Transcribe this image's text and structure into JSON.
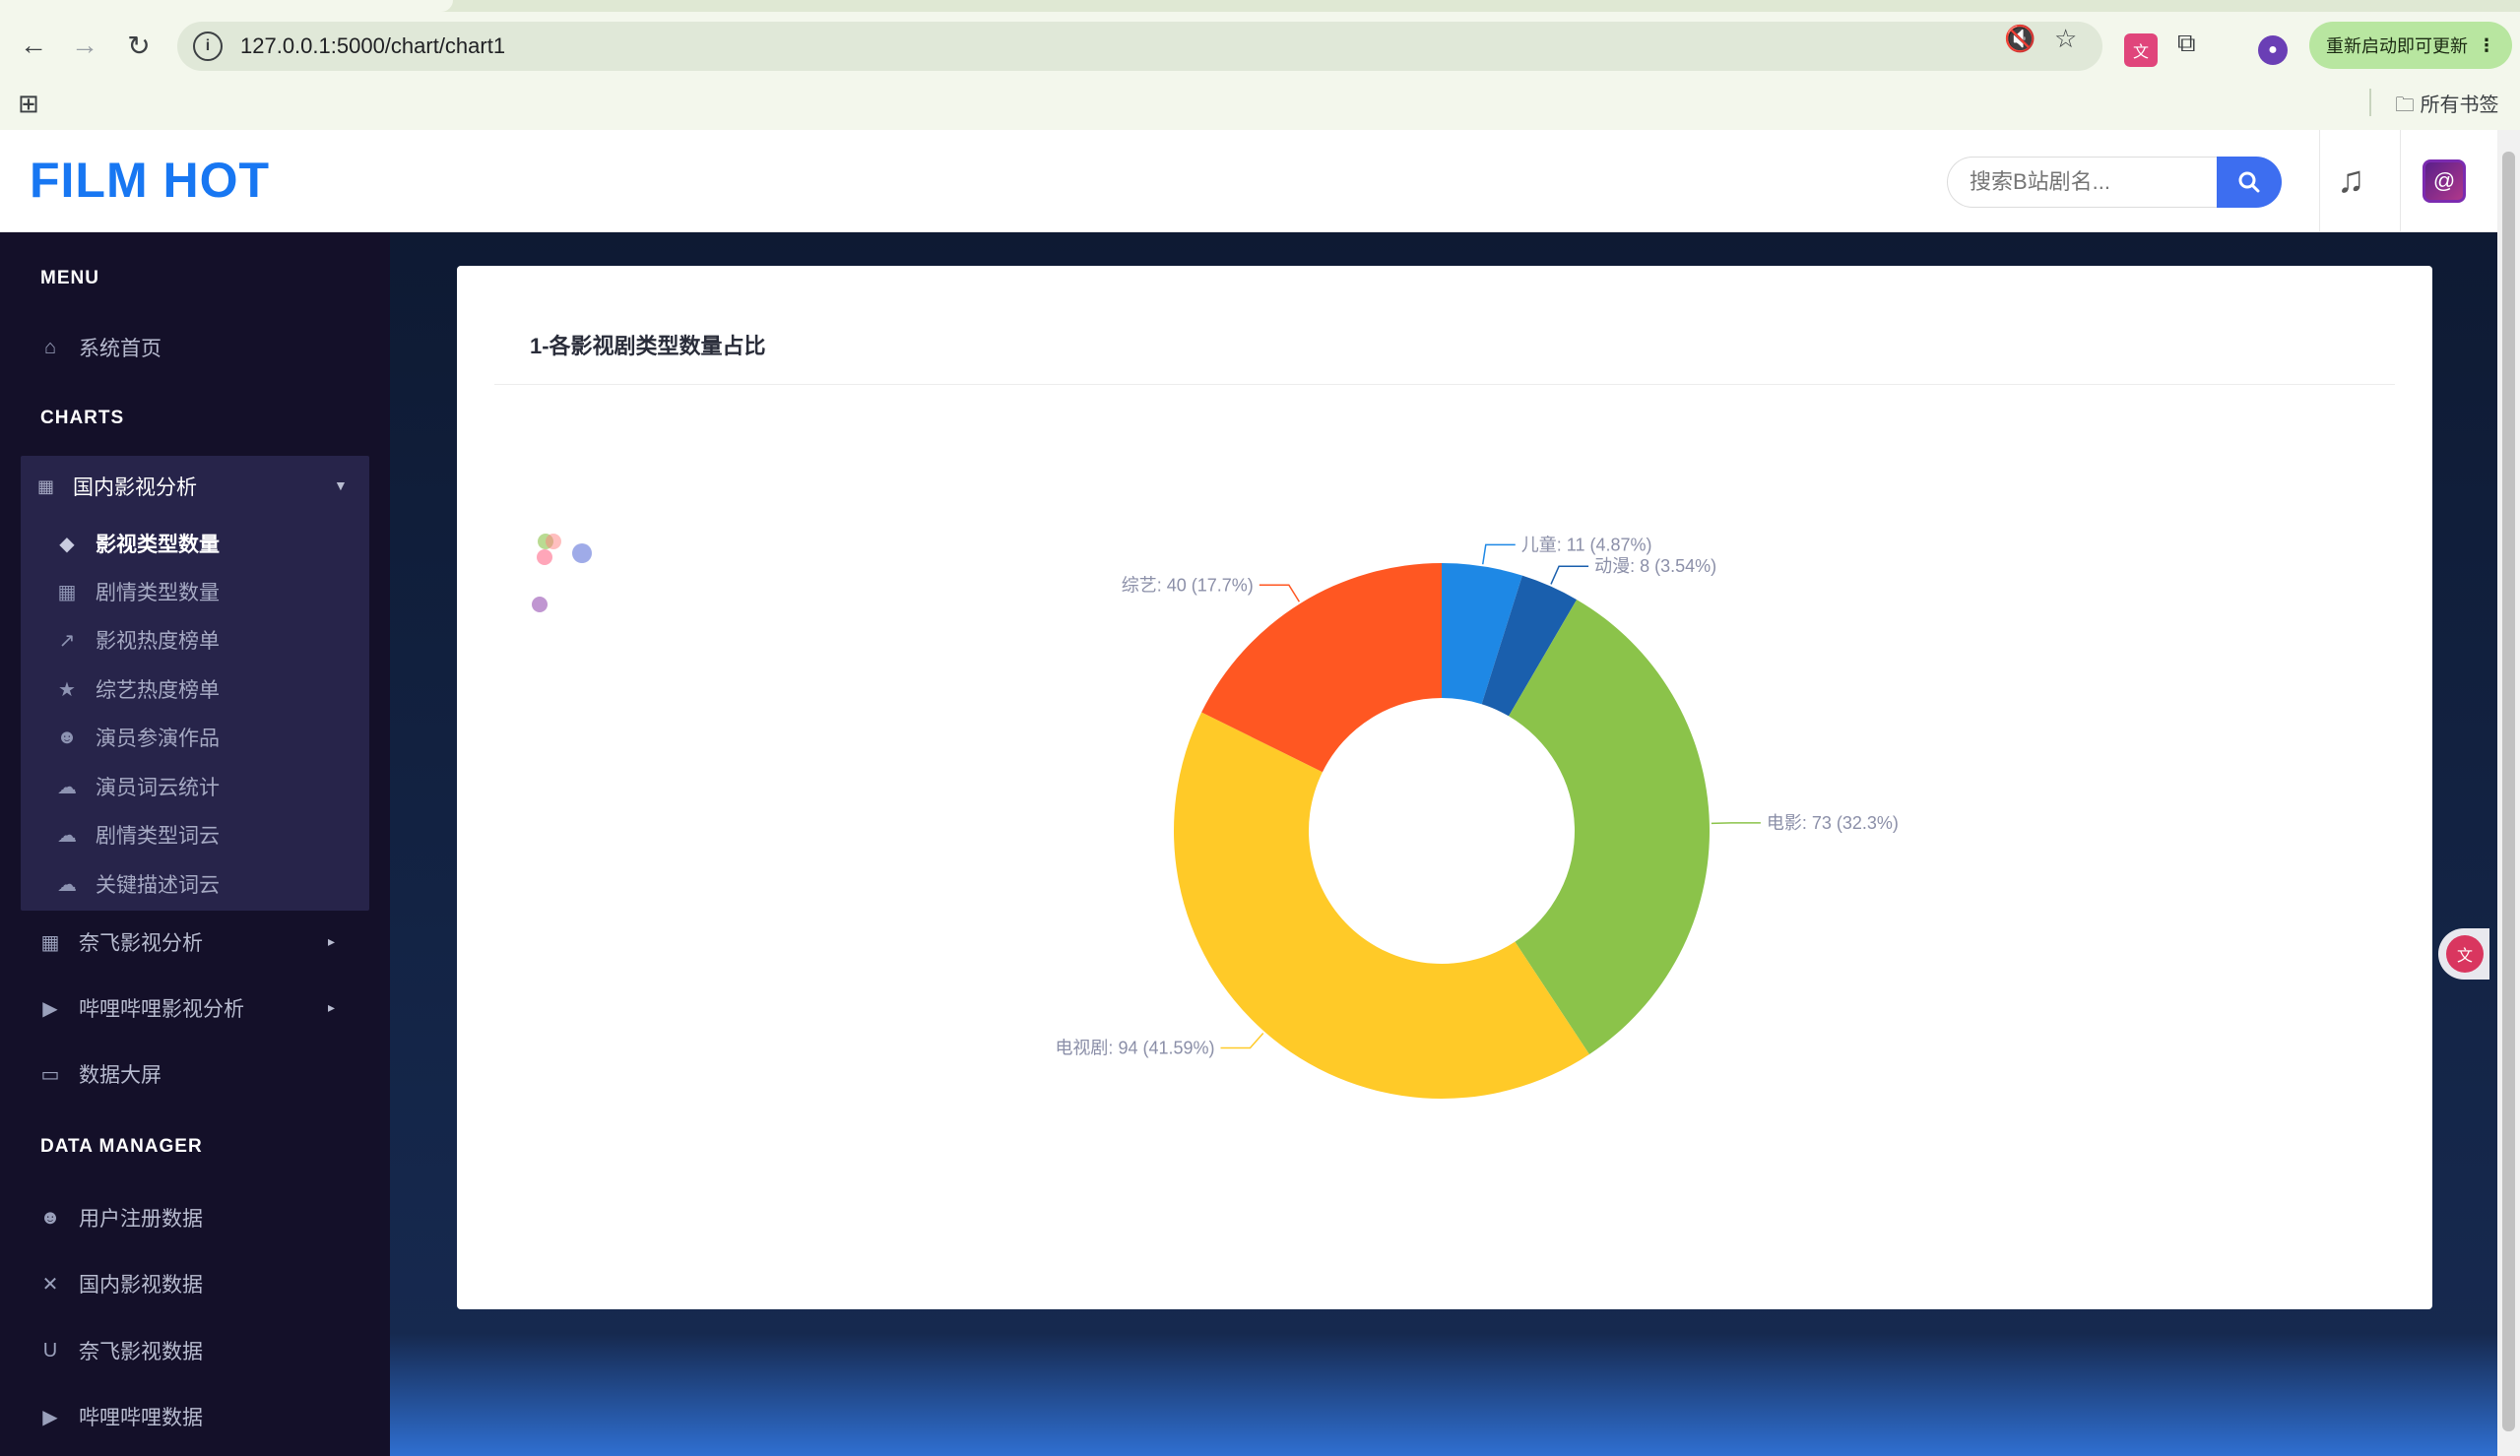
{
  "browser": {
    "url": "127.0.0.1:5000/chart/chart1",
    "update_button": "重新启动即可更新",
    "bookmarks_all": "所有书签"
  },
  "header": {
    "logo": "FILM HOT",
    "search_placeholder": "搜索B站剧名..."
  },
  "sidebar": {
    "menu_title": "MENU",
    "home": "系统首页",
    "charts_title": "CHARTS",
    "group_domestic": {
      "label": "国内影视分析",
      "items": [
        "影视类型数量",
        "剧情类型数量",
        "影视热度榜单",
        "综艺热度榜单",
        "演员参演作品",
        "演员词云统计",
        "剧情类型词云",
        "关键描述词云"
      ]
    },
    "group_netflix": "奈飞影视分析",
    "group_bilibili": "哔哩哔哩影视分析",
    "big_screen": "数据大屏",
    "data_manager_title": "DATA MANAGER",
    "data_items": [
      "用户注册数据",
      "国内影视数据",
      "奈飞影视数据",
      "哔哩哔哩数据"
    ]
  },
  "card": {
    "title": "1-各影视剧类型数量占比"
  },
  "chart_data": {
    "type": "pie",
    "donut": true,
    "categories": [
      "儿童",
      "动漫",
      "电影",
      "电视剧",
      "综艺"
    ],
    "values": [
      11,
      8,
      73,
      94,
      40
    ],
    "labels": [
      "儿童: 11 (4.87%)",
      "动漫: 8 (3.54%)",
      "电影: 73 (32.3%)",
      "电视剧: 94 (41.59%)",
      "综艺: 40 (17.7%)"
    ],
    "colors": [
      "#1e88e5",
      "#1a5fad",
      "#8bc34a",
      "#ffca28",
      "#ff5722"
    ],
    "title": "1-各影视剧类型数量占比"
  }
}
